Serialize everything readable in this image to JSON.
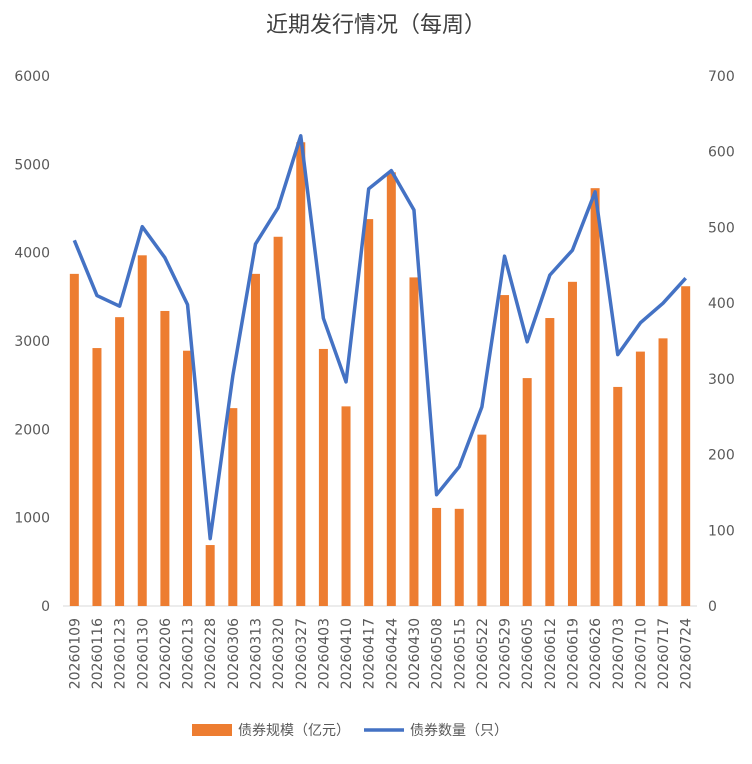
{
  "chart_data": {
    "type": "bar-line",
    "title": "近期发行情况（每周）",
    "categories": [
      "20260109",
      "20260116",
      "20260123",
      "20260130",
      "20260206",
      "20260213",
      "20260228",
      "20260306",
      "20260313",
      "20260320",
      "20260327",
      "20260403",
      "20260410",
      "20260417",
      "20260424",
      "20260430",
      "20260508",
      "20260515",
      "20260522",
      "20260529",
      "20260605",
      "20260612",
      "20260619",
      "20260626",
      "20260703",
      "20260710",
      "20260717",
      "20260724"
    ],
    "series": [
      {
        "name": "债券规模（亿元）",
        "type": "bar",
        "color": "#ed7d31",
        "values": [
          3760,
          2920,
          3270,
          3970,
          3340,
          2890,
          690,
          2240,
          3760,
          4180,
          5250,
          2910,
          2260,
          4380,
          4910,
          3720,
          1110,
          1100,
          1940,
          3520,
          2580,
          3260,
          3670,
          4730,
          2480,
          2880,
          3030,
          3620
        ]
      },
      {
        "name": "债券数量（只）",
        "type": "line",
        "axis": "y2",
        "color": "#4472c4",
        "values": [
          483,
          410,
          396,
          501,
          460,
          398,
          89,
          304,
          478,
          526,
          621,
          380,
          296,
          551,
          575,
          523,
          147,
          184,
          263,
          462,
          349,
          437,
          470,
          547,
          332,
          374,
          400,
          433
        ]
      }
    ],
    "ylim": [
      0,
      6000
    ],
    "yticks": [
      0,
      1000,
      2000,
      3000,
      4000,
      5000,
      6000
    ],
    "y2lim": [
      0,
      700
    ],
    "y2ticks": [
      0,
      100,
      200,
      300,
      400,
      500,
      600,
      700
    ],
    "legend": "bottom"
  }
}
